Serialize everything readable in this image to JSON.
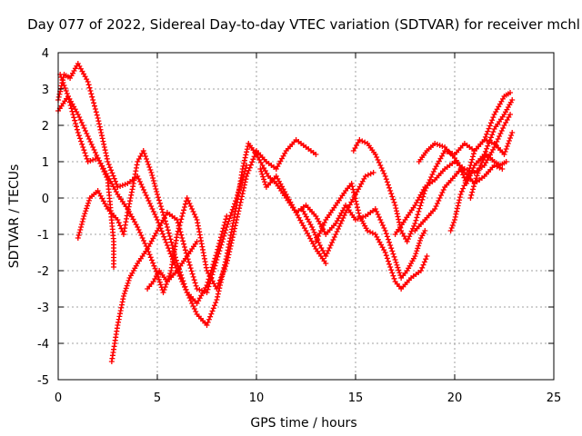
{
  "chart_data": {
    "type": "scatter",
    "title": "Day 077 of 2022, Sidereal Day-to-day VTEC variation (SDTVAR) for receiver mchl",
    "xlabel": "GPS time / hours",
    "ylabel": "SDTVAR / TECUs",
    "xlim": [
      0,
      25
    ],
    "ylim": [
      -5,
      4
    ],
    "xticks": [
      "0",
      "5",
      "10",
      "15",
      "20",
      "25"
    ],
    "yticks": [
      "4",
      "3",
      "2",
      "1",
      "0",
      "-1",
      "-2",
      "-3",
      "-4",
      "-5"
    ],
    "grid": true,
    "marker": "+",
    "color": "#ff0000",
    "series": [
      {
        "points": [
          [
            0.0,
            2.7
          ],
          [
            0.3,
            3.4
          ],
          [
            0.6,
            3.3
          ],
          [
            1.0,
            3.7
          ],
          [
            1.5,
            3.2
          ],
          [
            2.0,
            2.2
          ],
          [
            2.5,
            1.0
          ],
          [
            3.0,
            0.3
          ],
          [
            3.5,
            0.4
          ],
          [
            4.0,
            0.6
          ],
          [
            4.5,
            0.0
          ],
          [
            5.0,
            -0.6
          ],
          [
            5.5,
            -1.3
          ],
          [
            6.0,
            -2.0
          ],
          [
            6.5,
            -2.6
          ],
          [
            7.0,
            -3.2
          ],
          [
            7.5,
            -3.5
          ],
          [
            8.0,
            -2.8
          ],
          [
            8.5,
            -1.6
          ],
          [
            9.0,
            -0.2
          ],
          [
            9.3,
            0.8
          ],
          [
            9.6,
            1.5
          ],
          [
            10.0,
            1.2
          ],
          [
            10.3,
            0.9
          ],
          [
            10.6,
            0.6
          ],
          [
            11.0,
            0.4
          ],
          [
            11.5,
            0.0
          ],
          [
            12.0,
            -0.4
          ],
          [
            12.5,
            -0.9
          ],
          [
            13.0,
            -1.4
          ],
          [
            13.5,
            -1.8
          ]
        ]
      },
      {
        "points": [
          [
            0.0,
            2.4
          ],
          [
            0.5,
            2.8
          ],
          [
            1.0,
            2.3
          ],
          [
            1.5,
            1.7
          ],
          [
            2.0,
            1.1
          ],
          [
            2.5,
            0.6
          ],
          [
            3.0,
            0.1
          ],
          [
            3.5,
            -0.3
          ],
          [
            4.0,
            -0.8
          ],
          [
            4.5,
            -1.4
          ],
          [
            5.0,
            -2.1
          ],
          [
            5.3,
            -2.6
          ],
          [
            5.7,
            -2.0
          ],
          [
            6.0,
            -1.0
          ],
          [
            6.5,
            0.0
          ],
          [
            7.0,
            -0.6
          ],
          [
            7.5,
            -2.0
          ],
          [
            8.0,
            -2.5
          ],
          [
            8.5,
            -1.8
          ],
          [
            9.0,
            -0.6
          ],
          [
            9.5,
            0.6
          ],
          [
            10.0,
            1.3
          ],
          [
            10.5,
            1.0
          ],
          [
            11.0,
            0.8
          ],
          [
            11.5,
            1.3
          ],
          [
            12.0,
            1.6
          ],
          [
            12.5,
            1.4
          ],
          [
            13.0,
            1.2
          ]
        ]
      },
      {
        "points": [
          [
            1.0,
            -1.1
          ],
          [
            1.3,
            -0.5
          ],
          [
            1.6,
            0.0
          ],
          [
            2.0,
            0.2
          ],
          [
            2.5,
            -0.3
          ],
          [
            3.0,
            -0.6
          ],
          [
            3.3,
            -1.0
          ],
          [
            3.5,
            -0.4
          ],
          [
            3.8,
            0.4
          ],
          [
            4.0,
            1.0
          ],
          [
            4.3,
            1.3
          ],
          [
            4.7,
            0.7
          ],
          [
            5.0,
            0.1
          ],
          [
            5.5,
            -0.8
          ],
          [
            6.0,
            -1.8
          ],
          [
            6.5,
            -2.6
          ],
          [
            7.0,
            -2.9
          ],
          [
            7.5,
            -2.4
          ],
          [
            8.0,
            -1.5
          ],
          [
            8.5,
            -0.5
          ]
        ]
      },
      {
        "points": [
          [
            2.7,
            -4.5
          ],
          [
            3.0,
            -3.5
          ],
          [
            3.3,
            -2.7
          ],
          [
            3.6,
            -2.2
          ],
          [
            4.0,
            -1.8
          ],
          [
            4.5,
            -1.4
          ],
          [
            5.0,
            -0.9
          ],
          [
            5.5,
            -0.4
          ],
          [
            6.0,
            -0.6
          ],
          [
            6.5,
            -1.6
          ],
          [
            7.0,
            -2.5
          ],
          [
            7.5,
            -2.6
          ],
          [
            8.0,
            -1.7
          ],
          [
            8.5,
            -0.8
          ],
          [
            9.0,
            0.0
          ],
          [
            9.5,
            0.9
          ]
        ]
      },
      {
        "points": [
          [
            0.1,
            3.4
          ],
          [
            0.5,
            2.8
          ],
          [
            1.0,
            1.8
          ],
          [
            1.5,
            1.0
          ],
          [
            2.0,
            1.1
          ],
          [
            2.5,
            0.5
          ],
          [
            2.8,
            -1.2
          ],
          [
            2.8,
            -1.9
          ]
        ]
      },
      {
        "points": [
          [
            4.5,
            -2.5
          ],
          [
            4.8,
            -2.3
          ],
          [
            5.1,
            -2.0
          ],
          [
            5.5,
            -2.3
          ],
          [
            6.0,
            -2.0
          ],
          [
            6.5,
            -1.6
          ],
          [
            7.0,
            -1.2
          ]
        ]
      },
      {
        "points": [
          [
            10.2,
            0.8
          ],
          [
            10.5,
            0.3
          ],
          [
            11.0,
            0.6
          ],
          [
            11.5,
            0.1
          ],
          [
            12.0,
            -0.4
          ],
          [
            12.5,
            -0.2
          ],
          [
            13.0,
            -0.5
          ],
          [
            13.5,
            -1.0
          ],
          [
            14.0,
            -0.7
          ],
          [
            14.5,
            -0.2
          ],
          [
            15.0,
            -0.6
          ],
          [
            15.5,
            -0.5
          ],
          [
            16.0,
            -0.3
          ],
          [
            16.5,
            -0.9
          ],
          [
            17.0,
            -1.7
          ],
          [
            17.3,
            -2.2
          ],
          [
            17.6,
            -2.0
          ],
          [
            18.0,
            -1.6
          ],
          [
            18.3,
            -1.1
          ],
          [
            18.5,
            -0.9
          ]
        ]
      },
      {
        "points": [
          [
            12.3,
            -0.3
          ],
          [
            12.8,
            -0.8
          ],
          [
            13.2,
            -1.3
          ],
          [
            13.5,
            -1.6
          ],
          [
            14.0,
            -1.0
          ],
          [
            14.5,
            -0.4
          ],
          [
            15.0,
            0.1
          ],
          [
            15.5,
            0.6
          ],
          [
            15.9,
            0.7
          ]
        ]
      },
      {
        "points": [
          [
            13.0,
            -1.2
          ],
          [
            13.5,
            -0.6
          ],
          [
            14.0,
            -0.2
          ],
          [
            14.5,
            0.2
          ],
          [
            14.8,
            0.4
          ],
          [
            15.2,
            -0.5
          ],
          [
            15.6,
            -0.9
          ],
          [
            16.0,
            -1.0
          ],
          [
            16.5,
            -1.5
          ],
          [
            17.0,
            -2.3
          ],
          [
            17.3,
            -2.5
          ],
          [
            17.8,
            -2.2
          ],
          [
            18.3,
            -2.0
          ],
          [
            18.6,
            -1.6
          ]
        ]
      },
      {
        "points": [
          [
            14.9,
            1.3
          ],
          [
            15.2,
            1.6
          ],
          [
            15.6,
            1.5
          ],
          [
            16.0,
            1.2
          ],
          [
            16.5,
            0.6
          ],
          [
            17.0,
            -0.2
          ],
          [
            17.3,
            -0.9
          ],
          [
            17.6,
            -1.2
          ],
          [
            18.0,
            -0.7
          ],
          [
            18.5,
            0.2
          ],
          [
            19.0,
            0.8
          ],
          [
            19.5,
            1.3
          ],
          [
            20.0,
            1.2
          ],
          [
            20.5,
            1.5
          ],
          [
            21.0,
            1.3
          ],
          [
            21.5,
            1.6
          ],
          [
            22.0,
            2.3
          ],
          [
            22.5,
            2.8
          ],
          [
            22.8,
            2.9
          ]
        ]
      },
      {
        "points": [
          [
            17.0,
            -1.0
          ],
          [
            17.5,
            -0.6
          ],
          [
            18.0,
            -0.2
          ],
          [
            18.5,
            0.3
          ],
          [
            19.0,
            0.5
          ],
          [
            19.5,
            0.8
          ],
          [
            20.0,
            1.0
          ],
          [
            20.5,
            0.8
          ],
          [
            21.0,
            0.7
          ],
          [
            21.5,
            0.9
          ],
          [
            22.0,
            1.4
          ],
          [
            22.5,
            2.0
          ],
          [
            22.8,
            2.3
          ]
        ]
      },
      {
        "points": [
          [
            18.2,
            1.0
          ],
          [
            18.6,
            1.3
          ],
          [
            19.0,
            1.5
          ],
          [
            19.5,
            1.4
          ],
          [
            20.0,
            1.1
          ],
          [
            20.5,
            0.7
          ],
          [
            21.0,
            0.4
          ],
          [
            21.5,
            0.6
          ],
          [
            22.0,
            0.9
          ],
          [
            22.4,
            0.8
          ]
        ]
      },
      {
        "points": [
          [
            18.0,
            -0.9
          ],
          [
            18.5,
            -0.6
          ],
          [
            19.0,
            -0.3
          ],
          [
            19.5,
            0.3
          ],
          [
            20.0,
            0.6
          ],
          [
            20.3,
            0.8
          ],
          [
            20.6,
            0.4
          ],
          [
            21.0,
            0.9
          ],
          [
            21.5,
            1.2
          ],
          [
            22.0,
            1.9
          ],
          [
            22.5,
            2.3
          ],
          [
            22.9,
            2.7
          ]
        ]
      },
      {
        "points": [
          [
            19.8,
            -0.9
          ],
          [
            20.0,
            -0.6
          ],
          [
            20.3,
            0.1
          ],
          [
            20.6,
            0.5
          ],
          [
            21.0,
            1.3
          ],
          [
            21.5,
            1.6
          ],
          [
            22.0,
            1.5
          ],
          [
            22.5,
            1.2
          ],
          [
            22.9,
            1.8
          ]
        ]
      },
      {
        "points": [
          [
            20.8,
            0.0
          ],
          [
            21.0,
            0.4
          ],
          [
            21.3,
            0.9
          ],
          [
            21.6,
            1.2
          ],
          [
            22.0,
            1.0
          ],
          [
            22.3,
            0.9
          ],
          [
            22.6,
            1.0
          ]
        ]
      }
    ]
  }
}
